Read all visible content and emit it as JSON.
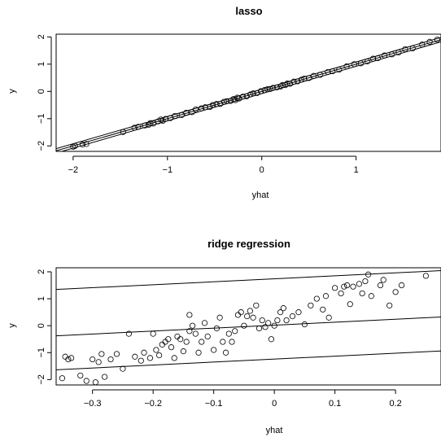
{
  "chart_data": [
    {
      "type": "scatter",
      "title": "lasso",
      "xlabel": "yhat",
      "ylabel": "y",
      "xlim": [
        -2.18,
        1.9
      ],
      "ylim": [
        -2.2,
        2.1
      ],
      "xticks": [
        -2,
        -1,
        0,
        1
      ],
      "yticks": [
        -2,
        -1,
        0,
        1,
        2
      ],
      "lines": [
        {
          "intercept": -0.08,
          "slope": 1.0
        },
        {
          "intercept": 0.0,
          "slope": 1.0
        },
        {
          "intercept": 0.08,
          "slope": 1.0
        }
      ],
      "points": [
        [
          -2.0,
          -2.03
        ],
        [
          -1.98,
          -2.0
        ],
        [
          -1.9,
          -1.95
        ],
        [
          -1.86,
          -1.93
        ],
        [
          -1.47,
          -1.49
        ],
        [
          -1.35,
          -1.33
        ],
        [
          -1.31,
          -1.3
        ],
        [
          -1.24,
          -1.25
        ],
        [
          -1.2,
          -1.23
        ],
        [
          -1.18,
          -1.16
        ],
        [
          -1.15,
          -1.18
        ],
        [
          -1.1,
          -1.1
        ],
        [
          -1.07,
          -1.03
        ],
        [
          -1.05,
          -1.08
        ],
        [
          -1.02,
          -1.01
        ],
        [
          -0.97,
          -0.98
        ],
        [
          -0.92,
          -0.9
        ],
        [
          -0.85,
          -0.87
        ],
        [
          -0.8,
          -0.78
        ],
        [
          -0.74,
          -0.76
        ],
        [
          -0.7,
          -0.66
        ],
        [
          -0.64,
          -0.62
        ],
        [
          -0.6,
          -0.58
        ],
        [
          -0.55,
          -0.57
        ],
        [
          -0.52,
          -0.5
        ],
        [
          -0.48,
          -0.46
        ],
        [
          -0.44,
          -0.46
        ],
        [
          -0.4,
          -0.38
        ],
        [
          -0.37,
          -0.36
        ],
        [
          -0.33,
          -0.35
        ],
        [
          -0.3,
          -0.28
        ],
        [
          -0.28,
          -0.32
        ],
        [
          -0.26,
          -0.23
        ],
        [
          -0.24,
          -0.26
        ],
        [
          -0.2,
          -0.19
        ],
        [
          -0.16,
          -0.18
        ],
        [
          -0.12,
          -0.11
        ],
        [
          -0.09,
          -0.07
        ],
        [
          -0.05,
          -0.06
        ],
        [
          -0.01,
          0.01
        ],
        [
          0.03,
          0.05
        ],
        [
          0.06,
          0.08
        ],
        [
          0.09,
          0.09
        ],
        [
          0.12,
          0.13
        ],
        [
          0.16,
          0.15
        ],
        [
          0.2,
          0.18
        ],
        [
          0.22,
          0.24
        ],
        [
          0.25,
          0.23
        ],
        [
          0.27,
          0.29
        ],
        [
          0.3,
          0.28
        ],
        [
          0.34,
          0.36
        ],
        [
          0.38,
          0.37
        ],
        [
          0.42,
          0.43
        ],
        [
          0.45,
          0.47
        ],
        [
          0.5,
          0.49
        ],
        [
          0.55,
          0.57
        ],
        [
          0.62,
          0.61
        ],
        [
          0.7,
          0.71
        ],
        [
          0.75,
          0.74
        ],
        [
          0.82,
          0.8
        ],
        [
          0.9,
          0.92
        ],
        [
          0.98,
          1.0
        ],
        [
          1.05,
          1.03
        ],
        [
          1.12,
          1.1
        ],
        [
          1.18,
          1.2
        ],
        [
          1.23,
          1.22
        ],
        [
          1.3,
          1.32
        ],
        [
          1.38,
          1.36
        ],
        [
          1.45,
          1.43
        ],
        [
          1.52,
          1.55
        ],
        [
          1.6,
          1.58
        ],
        [
          1.7,
          1.72
        ],
        [
          1.78,
          1.82
        ],
        [
          1.86,
          1.9
        ]
      ]
    },
    {
      "type": "scatter",
      "title": "ridge regression",
      "xlabel": "yhat",
      "ylabel": "y",
      "xlim": [
        -0.36,
        0.275
      ],
      "ylim": [
        -2.2,
        2.15
      ],
      "xticks": [
        -0.3,
        -0.2,
        -0.1,
        0.0,
        0.1,
        0.2
      ],
      "yticks": [
        -2,
        -1,
        0,
        1,
        2
      ],
      "lines": [
        {
          "intercept": 1.74,
          "slope": 1.1
        },
        {
          "intercept": 0.02,
          "slope": 1.1
        },
        {
          "intercept": -1.24,
          "slope": 1.1
        }
      ],
      "points": [
        [
          -0.35,
          -1.95
        ],
        [
          -0.345,
          -1.15
        ],
        [
          -0.34,
          -1.25
        ],
        [
          -0.335,
          -1.2
        ],
        [
          -0.32,
          -1.85
        ],
        [
          -0.31,
          -2.05
        ],
        [
          -0.3,
          -1.25
        ],
        [
          -0.295,
          -2.1
        ],
        [
          -0.29,
          -1.35
        ],
        [
          -0.285,
          -1.05
        ],
        [
          -0.28,
          -1.9
        ],
        [
          -0.27,
          -1.25
        ],
        [
          -0.26,
          -1.05
        ],
        [
          -0.25,
          -1.6
        ],
        [
          -0.24,
          -0.3
        ],
        [
          -0.23,
          -1.15
        ],
        [
          -0.22,
          -1.3
        ],
        [
          -0.215,
          -1.0
        ],
        [
          -0.205,
          -1.2
        ],
        [
          -0.2,
          -0.3
        ],
        [
          -0.195,
          -0.9
        ],
        [
          -0.19,
          -1.1
        ],
        [
          -0.185,
          -0.7
        ],
        [
          -0.18,
          -0.6
        ],
        [
          -0.175,
          -0.5
        ],
        [
          -0.17,
          -0.8
        ],
        [
          -0.165,
          -1.2
        ],
        [
          -0.16,
          -0.4
        ],
        [
          -0.155,
          -0.5
        ],
        [
          -0.15,
          -0.95
        ],
        [
          -0.145,
          -0.6
        ],
        [
          -0.14,
          -0.2
        ],
        [
          -0.14,
          0.4
        ],
        [
          -0.135,
          0.0
        ],
        [
          -0.13,
          -0.3
        ],
        [
          -0.125,
          -1.0
        ],
        [
          -0.12,
          -0.6
        ],
        [
          -0.115,
          0.1
        ],
        [
          -0.11,
          -0.4
        ],
        [
          -0.1,
          -0.9
        ],
        [
          -0.095,
          -0.1
        ],
        [
          -0.09,
          0.3
        ],
        [
          -0.085,
          -0.6
        ],
        [
          -0.08,
          -1.0
        ],
        [
          -0.075,
          -0.3
        ],
        [
          -0.07,
          -0.6
        ],
        [
          -0.065,
          -0.2
        ],
        [
          -0.06,
          0.4
        ],
        [
          -0.055,
          0.5
        ],
        [
          -0.05,
          0.0
        ],
        [
          -0.045,
          0.35
        ],
        [
          -0.04,
          0.55
        ],
        [
          -0.035,
          0.3
        ],
        [
          -0.03,
          0.75
        ],
        [
          -0.025,
          -0.1
        ],
        [
          -0.02,
          0.2
        ],
        [
          -0.015,
          -0.05
        ],
        [
          -0.01,
          0.1
        ],
        [
          -0.005,
          -0.5
        ],
        [
          0.0,
          0.0
        ],
        [
          0.005,
          0.2
        ],
        [
          0.01,
          0.5
        ],
        [
          0.015,
          0.65
        ],
        [
          0.02,
          0.2
        ],
        [
          0.03,
          0.35
        ],
        [
          0.04,
          0.5
        ],
        [
          0.05,
          0.05
        ],
        [
          0.06,
          0.75
        ],
        [
          0.07,
          1.0
        ],
        [
          0.08,
          0.6
        ],
        [
          0.085,
          1.1
        ],
        [
          0.09,
          0.3
        ],
        [
          0.1,
          1.4
        ],
        [
          0.11,
          1.2
        ],
        [
          0.115,
          1.45
        ],
        [
          0.12,
          1.5
        ],
        [
          0.125,
          0.8
        ],
        [
          0.13,
          1.45
        ],
        [
          0.14,
          1.55
        ],
        [
          0.145,
          1.2
        ],
        [
          0.15,
          1.65
        ],
        [
          0.155,
          1.9
        ],
        [
          0.16,
          1.1
        ],
        [
          0.175,
          1.5
        ],
        [
          0.18,
          1.7
        ],
        [
          0.19,
          0.75
        ],
        [
          0.2,
          1.25
        ],
        [
          0.21,
          1.5
        ],
        [
          0.25,
          1.85
        ]
      ]
    }
  ]
}
